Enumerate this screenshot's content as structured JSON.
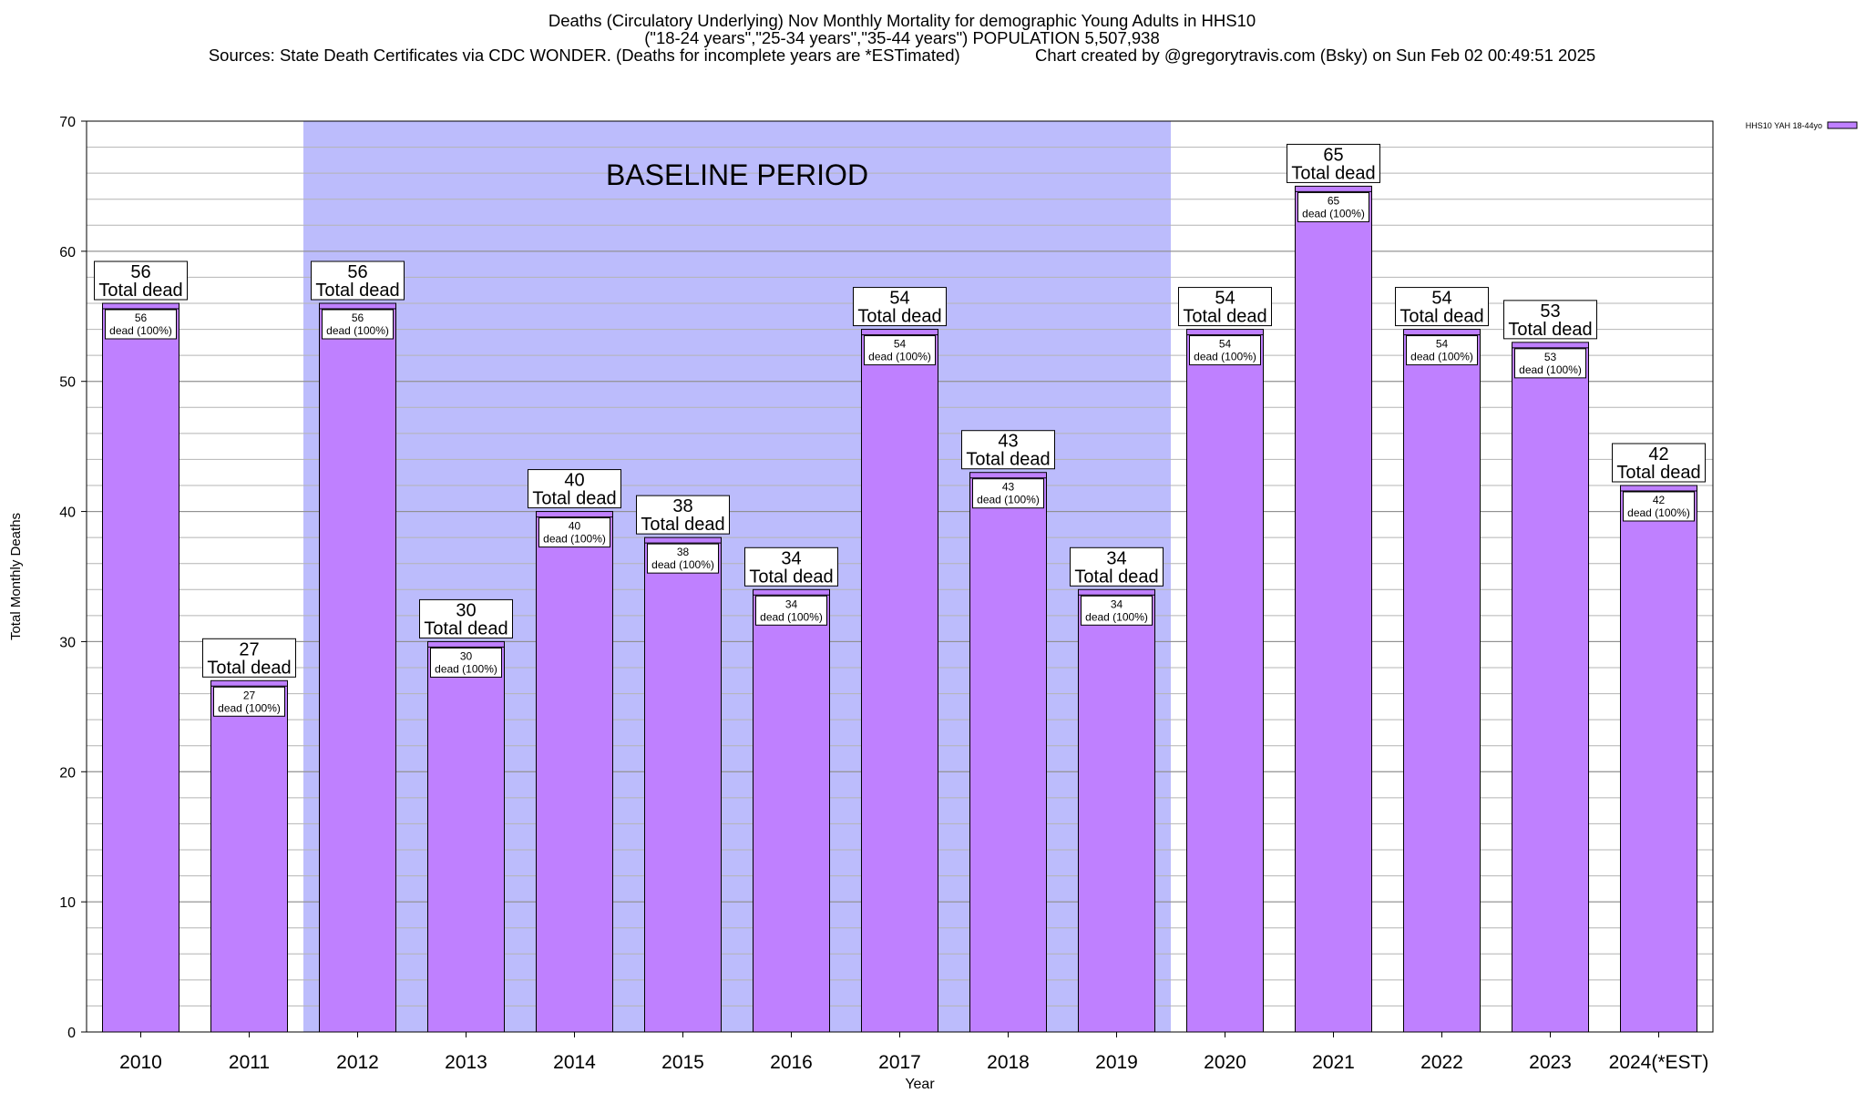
{
  "title_lines": [
    "Deaths (Circulatory Underlying) Nov Monthly Mortality for demographic Young Adults in HHS10",
    "(\"18-24 years\",\"25-34 years\",\"35-44 years\") POPULATION 5,507,938",
    "Sources: State Death Certificates via CDC WONDER. (Deaths for incomplete years are *ESTimated)                Chart created by @gregorytravis.com (Bsky) on Sun Feb 02 00:49:51 2025"
  ],
  "chart_data": {
    "type": "bar",
    "xlabel": "Year",
    "ylabel": "Total Monthly Deaths",
    "ylim": [
      0,
      70
    ],
    "y_major_ticks": [
      0,
      10,
      20,
      30,
      40,
      50,
      60,
      70
    ],
    "y_minor_step": 2,
    "grid": true,
    "legend_position": "top-right",
    "categories": [
      "2010",
      "2011",
      "2012",
      "2013",
      "2014",
      "2015",
      "2016",
      "2017",
      "2018",
      "2019",
      "2020",
      "2021",
      "2022",
      "2023",
      "2024(*EST)"
    ],
    "series": [
      {
        "name": "HHS10 YAH 18-44yo",
        "color": "#bf80ff",
        "values": [
          56,
          27,
          56,
          30,
          40,
          38,
          34,
          54,
          43,
          34,
          54,
          65,
          54,
          53,
          42
        ]
      }
    ],
    "top_label_suffix": "Total dead",
    "inner_label_suffix": "dead (100%)",
    "baseline": {
      "label": "BASELINE PERIOD",
      "from": "2012",
      "to": "2019",
      "color": "#bcbcfc"
    }
  }
}
